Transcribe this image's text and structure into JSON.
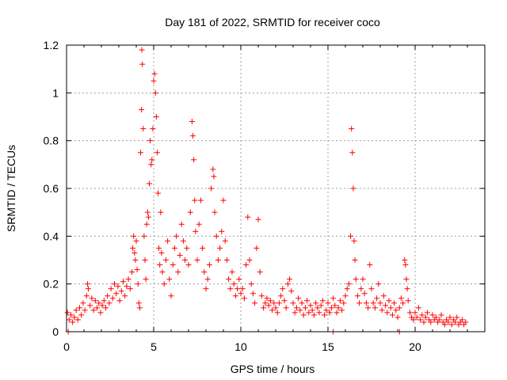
{
  "chart_data": {
    "type": "scatter",
    "title": "Day 181 of 2022, SRMTID for receiver coco",
    "xlabel": "GPS time / hours",
    "ylabel": "SRMTID / TECUs",
    "xlim": [
      0,
      24
    ],
    "ylim": [
      0,
      1.2
    ],
    "xticks": [
      0,
      5,
      10,
      15,
      20
    ],
    "xtick_labels": [
      "0",
      "5",
      "10",
      "15",
      "20"
    ],
    "yticks": [
      0,
      0.2,
      0.4,
      0.6,
      0.8,
      1.0,
      1.2
    ],
    "ytick_labels": [
      "0",
      "0.2",
      "0.4",
      "0.6",
      "0.8",
      "1",
      "1.2"
    ],
    "grid": true,
    "marker": "+",
    "marker_color": "#ff0000",
    "series": [
      {
        "name": "SRMTID",
        "points": [
          [
            0.05,
            0.08
          ],
          [
            0.15,
            0.05
          ],
          [
            0.25,
            0.07
          ],
          [
            0.35,
            0.04
          ],
          [
            0.45,
            0.06
          ],
          [
            0.55,
            0.09
          ],
          [
            0.65,
            0.05
          ],
          [
            0.75,
            0.1
          ],
          [
            0.85,
            0.07
          ],
          [
            0.95,
            0.12
          ],
          [
            1.05,
            0.09
          ],
          [
            1.15,
            0.15
          ],
          [
            1.2,
            0.2
          ],
          [
            1.25,
            0.18
          ],
          [
            1.35,
            0.11
          ],
          [
            1.45,
            0.14
          ],
          [
            1.55,
            0.09
          ],
          [
            1.65,
            0.13
          ],
          [
            1.75,
            0.1
          ],
          [
            1.85,
            0.12
          ],
          [
            1.95,
            0.08
          ],
          [
            2.05,
            0.11
          ],
          [
            2.15,
            0.13
          ],
          [
            2.25,
            0.1
          ],
          [
            2.35,
            0.15
          ],
          [
            2.45,
            0.12
          ],
          [
            2.55,
            0.18
          ],
          [
            2.65,
            0.14
          ],
          [
            2.75,
            0.2
          ],
          [
            2.85,
            0.16
          ],
          [
            2.95,
            0.19
          ],
          [
            3.05,
            0.13
          ],
          [
            3.15,
            0.17
          ],
          [
            3.25,
            0.21
          ],
          [
            3.35,
            0.15
          ],
          [
            3.45,
            0.19
          ],
          [
            3.55,
            0.22
          ],
          [
            3.65,
            0.18
          ],
          [
            3.75,
            0.25
          ],
          [
            3.8,
            0.35
          ],
          [
            3.85,
            0.4
          ],
          [
            3.9,
            0.33
          ],
          [
            3.95,
            0.3
          ],
          [
            4.0,
            0.38
          ],
          [
            4.05,
            0.26
          ],
          [
            4.1,
            0.2
          ],
          [
            4.15,
            0.12
          ],
          [
            4.2,
            0.1
          ],
          [
            4.25,
            0.75
          ],
          [
            4.3,
            0.93
          ],
          [
            4.32,
            1.18
          ],
          [
            4.35,
            1.12
          ],
          [
            4.4,
            0.85
          ],
          [
            4.45,
            0.4
          ],
          [
            4.5,
            0.3
          ],
          [
            4.55,
            0.22
          ],
          [
            4.6,
            0.45
          ],
          [
            4.65,
            0.5
          ],
          [
            4.7,
            0.48
          ],
          [
            4.75,
            0.62
          ],
          [
            4.8,
            0.8
          ],
          [
            4.85,
            0.7
          ],
          [
            4.9,
            0.72
          ],
          [
            4.95,
            0.85
          ],
          [
            5.0,
            1.05
          ],
          [
            5.05,
            1.08
          ],
          [
            5.1,
            1.0
          ],
          [
            5.15,
            0.9
          ],
          [
            5.2,
            0.75
          ],
          [
            5.25,
            0.58
          ],
          [
            5.3,
            0.35
          ],
          [
            5.35,
            0.28
          ],
          [
            5.4,
            0.5
          ],
          [
            5.45,
            0.33
          ],
          [
            5.5,
            0.25
          ],
          [
            5.6,
            0.2
          ],
          [
            5.7,
            0.3
          ],
          [
            5.8,
            0.38
          ],
          [
            5.9,
            0.22
          ],
          [
            6.0,
            0.15
          ],
          [
            6.1,
            0.28
          ],
          [
            6.2,
            0.35
          ],
          [
            6.3,
            0.4
          ],
          [
            6.4,
            0.25
          ],
          [
            6.5,
            0.32
          ],
          [
            6.6,
            0.45
          ],
          [
            6.7,
            0.38
          ],
          [
            6.8,
            0.3
          ],
          [
            6.9,
            0.35
          ],
          [
            7.0,
            0.28
          ],
          [
            7.1,
            0.5
          ],
          [
            7.2,
            0.88
          ],
          [
            7.25,
            0.82
          ],
          [
            7.3,
            0.72
          ],
          [
            7.35,
            0.55
          ],
          [
            7.4,
            0.42
          ],
          [
            7.5,
            0.3
          ],
          [
            7.6,
            0.45
          ],
          [
            7.7,
            0.55
          ],
          [
            7.8,
            0.35
          ],
          [
            7.9,
            0.25
          ],
          [
            8.0,
            0.18
          ],
          [
            8.1,
            0.22
          ],
          [
            8.2,
            0.28
          ],
          [
            8.3,
            0.6
          ],
          [
            8.4,
            0.68
          ],
          [
            8.45,
            0.65
          ],
          [
            8.5,
            0.5
          ],
          [
            8.6,
            0.4
          ],
          [
            8.7,
            0.3
          ],
          [
            8.8,
            0.35
          ],
          [
            8.9,
            0.42
          ],
          [
            9.0,
            0.55
          ],
          [
            9.1,
            0.38
          ],
          [
            9.2,
            0.3
          ],
          [
            9.3,
            0.22
          ],
          [
            9.4,
            0.18
          ],
          [
            9.5,
            0.25
          ],
          [
            9.6,
            0.2
          ],
          [
            9.7,
            0.15
          ],
          [
            9.8,
            0.18
          ],
          [
            9.9,
            0.22
          ],
          [
            10.0,
            0.16
          ],
          [
            10.1,
            0.18
          ],
          [
            10.2,
            0.14
          ],
          [
            10.3,
            0.28
          ],
          [
            10.4,
            0.48
          ],
          [
            10.5,
            0.3
          ],
          [
            10.6,
            0.2
          ],
          [
            10.7,
            0.16
          ],
          [
            10.8,
            0.12
          ],
          [
            10.9,
            0.35
          ],
          [
            11.0,
            0.47
          ],
          [
            11.1,
            0.25
          ],
          [
            11.2,
            0.15
          ],
          [
            11.3,
            0.1
          ],
          [
            11.4,
            0.12
          ],
          [
            11.5,
            0.14
          ],
          [
            11.6,
            0.11
          ],
          [
            11.7,
            0.13
          ],
          [
            11.8,
            0.09
          ],
          [
            11.9,
            0.12
          ],
          [
            12.0,
            0.1
          ],
          [
            12.1,
            0.08
          ],
          [
            12.2,
            0.12
          ],
          [
            12.3,
            0.15
          ],
          [
            12.4,
            0.18
          ],
          [
            12.5,
            0.13
          ],
          [
            12.6,
            0.1
          ],
          [
            12.7,
            0.2
          ],
          [
            12.8,
            0.22
          ],
          [
            12.9,
            0.17
          ],
          [
            13.0,
            0.12
          ],
          [
            13.1,
            0.08
          ],
          [
            13.2,
            0.1
          ],
          [
            13.3,
            0.14
          ],
          [
            13.4,
            0.09
          ],
          [
            13.5,
            0.12
          ],
          [
            13.6,
            0.07
          ],
          [
            13.7,
            0.1
          ],
          [
            13.8,
            0.13
          ],
          [
            13.9,
            0.08
          ],
          [
            14.0,
            0.11
          ],
          [
            14.1,
            0.09
          ],
          [
            14.2,
            0.07
          ],
          [
            14.3,
            0.12
          ],
          [
            14.4,
            0.1
          ],
          [
            14.5,
            0.08
          ],
          [
            14.6,
            0.11
          ],
          [
            14.7,
            0.13
          ],
          [
            14.8,
            0.07
          ],
          [
            14.9,
            0.09
          ],
          [
            15.0,
            0.12
          ],
          [
            15.1,
            0.08
          ],
          [
            15.2,
            0.1
          ],
          [
            15.3,
            0.14
          ],
          [
            15.4,
            0.11
          ],
          [
            15.5,
            0.08
          ],
          [
            15.6,
            0.1
          ],
          [
            15.7,
            0.13
          ],
          [
            15.8,
            0.09
          ],
          [
            15.9,
            0.12
          ],
          [
            16.0,
            0.15
          ],
          [
            16.1,
            0.18
          ],
          [
            16.2,
            0.2
          ],
          [
            16.3,
            0.4
          ],
          [
            16.35,
            0.85
          ],
          [
            16.4,
            0.75
          ],
          [
            16.45,
            0.6
          ],
          [
            16.5,
            0.38
          ],
          [
            16.55,
            0.3
          ],
          [
            16.6,
            0.22
          ],
          [
            16.7,
            0.15
          ],
          [
            16.8,
            0.12
          ],
          [
            16.9,
            0.18
          ],
          [
            17.0,
            0.22
          ],
          [
            17.1,
            0.16
          ],
          [
            17.2,
            0.12
          ],
          [
            17.3,
            0.1
          ],
          [
            17.4,
            0.28
          ],
          [
            17.5,
            0.18
          ],
          [
            17.6,
            0.12
          ],
          [
            17.7,
            0.1
          ],
          [
            17.8,
            0.14
          ],
          [
            17.9,
            0.2
          ],
          [
            18.0,
            0.12
          ],
          [
            18.1,
            0.09
          ],
          [
            18.2,
            0.15
          ],
          [
            18.3,
            0.11
          ],
          [
            18.4,
            0.08
          ],
          [
            18.5,
            0.13
          ],
          [
            18.6,
            0.1
          ],
          [
            18.7,
            0.07
          ],
          [
            18.8,
            0.12
          ],
          [
            18.9,
            0.09
          ],
          [
            19.0,
            0.06
          ],
          [
            19.1,
            0.1
          ],
          [
            19.2,
            0.14
          ],
          [
            19.3,
            0.12
          ],
          [
            19.4,
            0.3
          ],
          [
            19.45,
            0.28
          ],
          [
            19.5,
            0.22
          ],
          [
            19.55,
            0.18
          ],
          [
            19.6,
            0.13
          ],
          [
            19.7,
            0.08
          ],
          [
            19.8,
            0.06
          ],
          [
            19.9,
            0.05
          ],
          [
            20.0,
            0.08
          ],
          [
            20.1,
            0.06
          ],
          [
            20.2,
            0.1
          ],
          [
            20.3,
            0.05
          ],
          [
            20.4,
            0.07
          ],
          [
            20.5,
            0.04
          ],
          [
            20.6,
            0.06
          ],
          [
            20.7,
            0.08
          ],
          [
            20.8,
            0.05
          ],
          [
            20.9,
            0.04
          ],
          [
            21.0,
            0.07
          ],
          [
            21.1,
            0.05
          ],
          [
            21.2,
            0.06
          ],
          [
            21.3,
            0.04
          ],
          [
            21.4,
            0.05
          ],
          [
            21.5,
            0.07
          ],
          [
            21.6,
            0.04
          ],
          [
            21.7,
            0.03
          ],
          [
            21.8,
            0.05
          ],
          [
            21.9,
            0.04
          ],
          [
            22.0,
            0.06
          ],
          [
            22.1,
            0.03
          ],
          [
            22.2,
            0.05
          ],
          [
            22.3,
            0.04
          ],
          [
            22.4,
            0.06
          ],
          [
            22.5,
            0.03
          ],
          [
            22.6,
            0.04
          ],
          [
            22.7,
            0.05
          ],
          [
            22.8,
            0.03
          ],
          [
            22.9,
            0.04
          ],
          [
            0.1,
            0.0
          ],
          [
            15.3,
            0.0
          ],
          [
            19.1,
            0.0
          ]
        ]
      }
    ]
  }
}
